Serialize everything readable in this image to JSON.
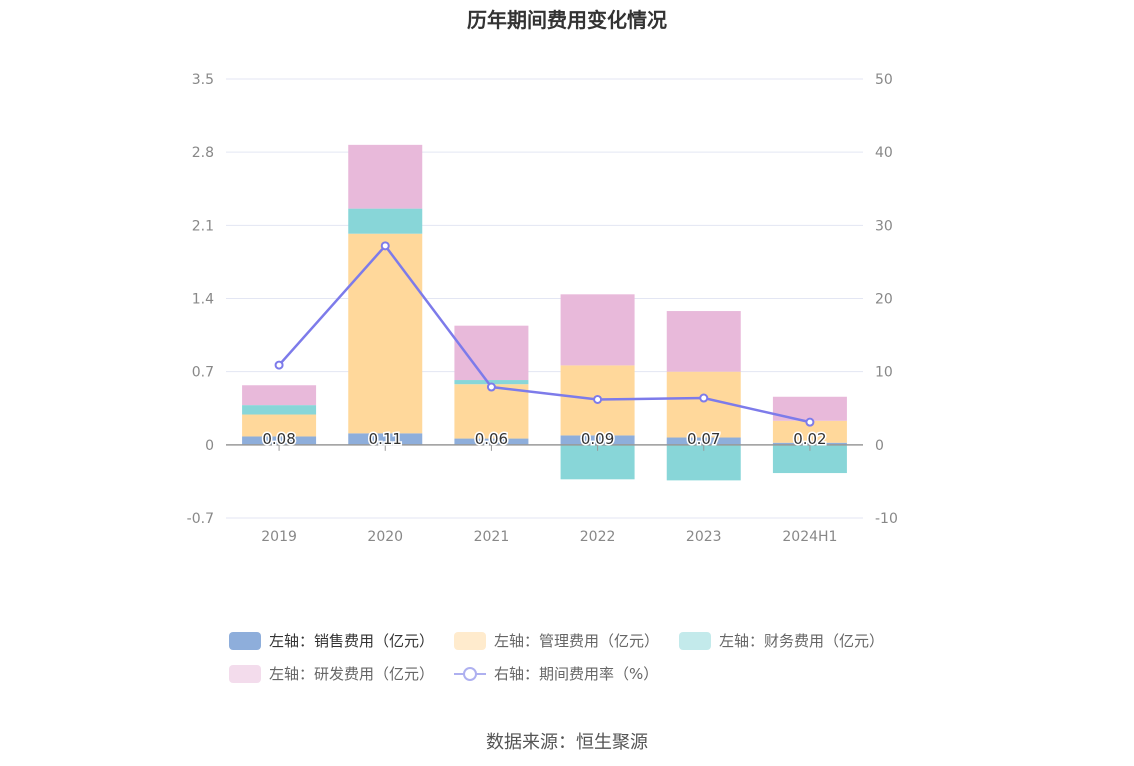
{
  "chart_data": {
    "type": "bar",
    "title": "历年期间费用变化情况",
    "categories": [
      "2019",
      "2020",
      "2021",
      "2022",
      "2023",
      "2024H1"
    ],
    "left_axis": {
      "ticks": [
        "3.5",
        "2.8",
        "2.1",
        "1.4",
        "0.7",
        "0",
        "-0.7"
      ],
      "ylim": [
        -0.7,
        3.5
      ]
    },
    "right_axis": {
      "ticks": [
        "50",
        "40",
        "30",
        "20",
        "10",
        "0",
        "-10"
      ],
      "ylim": [
        -10,
        50
      ]
    },
    "series": [
      {
        "name": "左轴：销售费用（亿元）",
        "type": "bar",
        "stack": "left",
        "color": "#8eaedb",
        "values": [
          0.08,
          0.11,
          0.06,
          0.09,
          0.07,
          0.02
        ]
      },
      {
        "name": "左轴：管理费用（亿元）",
        "type": "bar",
        "stack": "left",
        "color": "#ffd89b",
        "values": [
          0.21,
          1.91,
          0.52,
          0.67,
          0.63,
          0.21
        ]
      },
      {
        "name": "左轴：财务费用（亿元）",
        "type": "bar",
        "stack": "left",
        "color": "#88d6d8",
        "values": [
          0.09,
          0.24,
          0.04,
          -0.33,
          -0.34,
          -0.27
        ]
      },
      {
        "name": "左轴：研发费用（亿元）",
        "type": "bar",
        "stack": "left",
        "color": "#e8b9da",
        "values": [
          0.19,
          0.61,
          0.52,
          0.68,
          0.58,
          0.23
        ]
      },
      {
        "name": "右轴：期间费用率（%）",
        "type": "line",
        "axis": "right",
        "color": "#7d7bea",
        "values": [
          10.9,
          27.2,
          7.9,
          6.2,
          6.4,
          3.1
        ]
      }
    ],
    "data_labels": [
      "0.08",
      "0.11",
      "0.06",
      "0.09",
      "0.07",
      "0.02"
    ],
    "legend_position": "bottom",
    "grid": true
  },
  "source": "数据来源：恒生聚源"
}
